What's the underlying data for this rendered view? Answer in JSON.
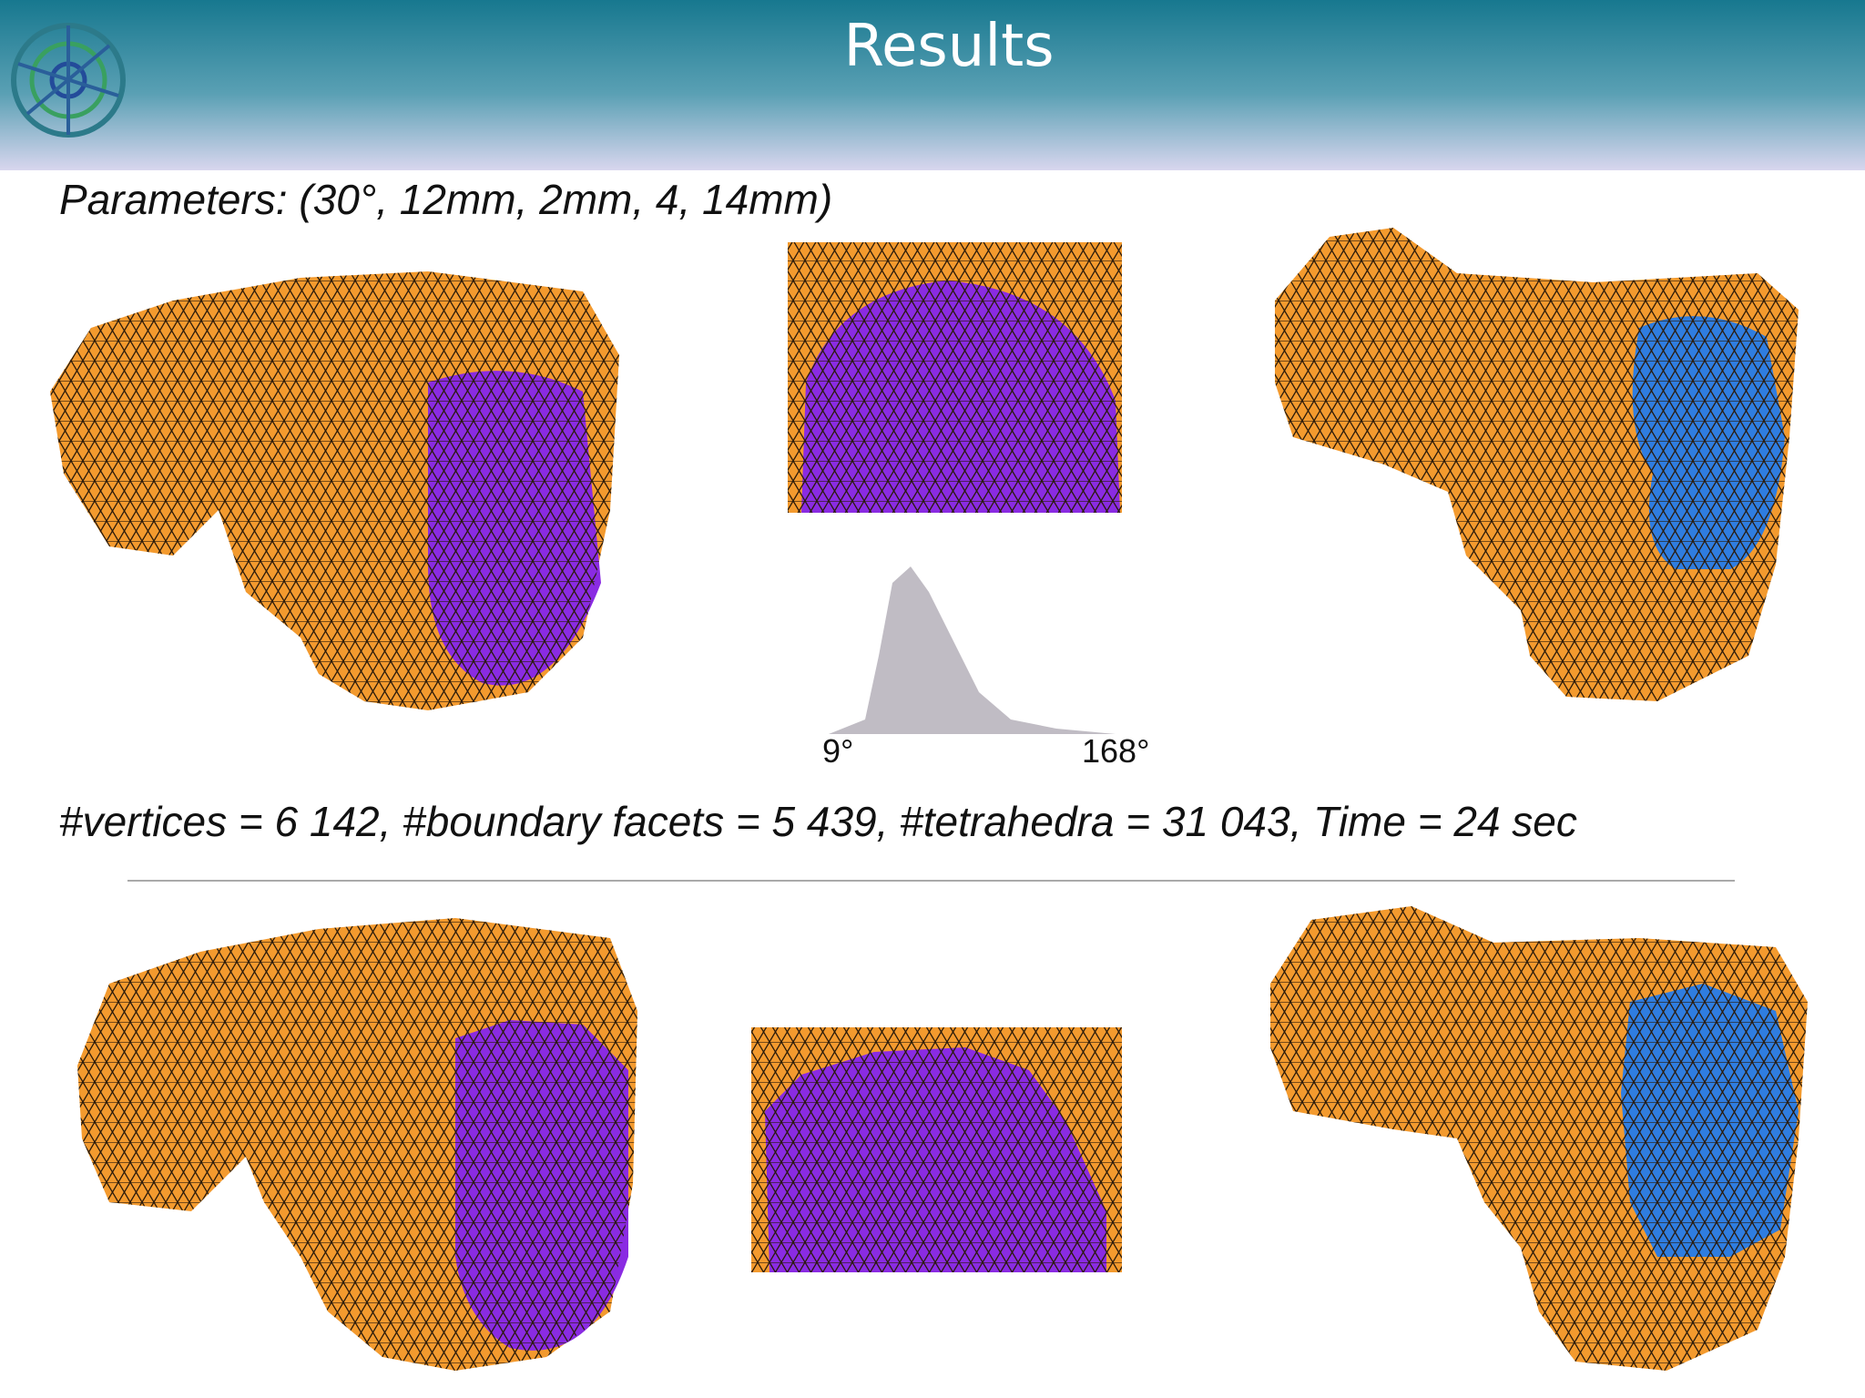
{
  "header": {
    "title": "Results"
  },
  "parameters": "Parameters: (30°, 12mm, 2mm, 4, 14mm)",
  "histogram": {
    "min_label": "9°",
    "max_label": "168°"
  },
  "stats": "#vertices = 6 142, #boundary facets = 5 439, #tetrahedra = 31 043, Time = 24 sec"
}
